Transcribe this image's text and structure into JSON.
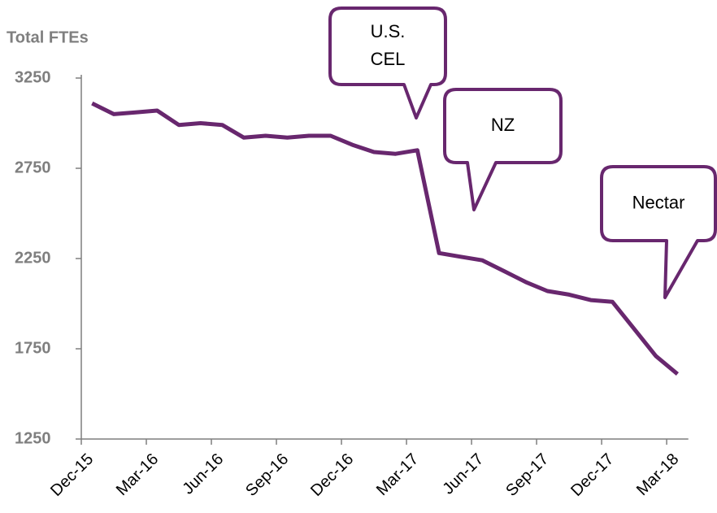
{
  "chart_data": {
    "type": "line",
    "y_axis_label": "Total FTEs",
    "categories": [
      "Dec-15",
      null,
      null,
      "Mar-16",
      null,
      null,
      "Jun-16",
      null,
      null,
      "Sep-16",
      null,
      null,
      "Dec-16",
      null,
      null,
      "Mar-17",
      null,
      null,
      "Jun-17",
      null,
      null,
      "Sep-17",
      null,
      null,
      "Dec-17",
      null,
      null,
      "Mar-18"
    ],
    "series": [
      {
        "name": "Total FTEs",
        "color": "#68276e",
        "values": [
          3110,
          3050,
          3060,
          3070,
          2990,
          3000,
          2990,
          2920,
          2930,
          2920,
          2930,
          2930,
          2880,
          2840,
          2830,
          2850,
          2280,
          2260,
          2240,
          2180,
          2120,
          2070,
          2050,
          2020,
          2010,
          1860,
          1710,
          1610
        ]
      }
    ],
    "ylim": [
      1250,
      3250
    ],
    "yticks": [
      1250,
      1750,
      2250,
      2750,
      3250
    ],
    "annotations": [
      {
        "lines": [
          "U.S.",
          "CEL"
        ]
      },
      {
        "lines": [
          "NZ"
        ]
      },
      {
        "lines": [
          "Nectar"
        ]
      }
    ]
  }
}
